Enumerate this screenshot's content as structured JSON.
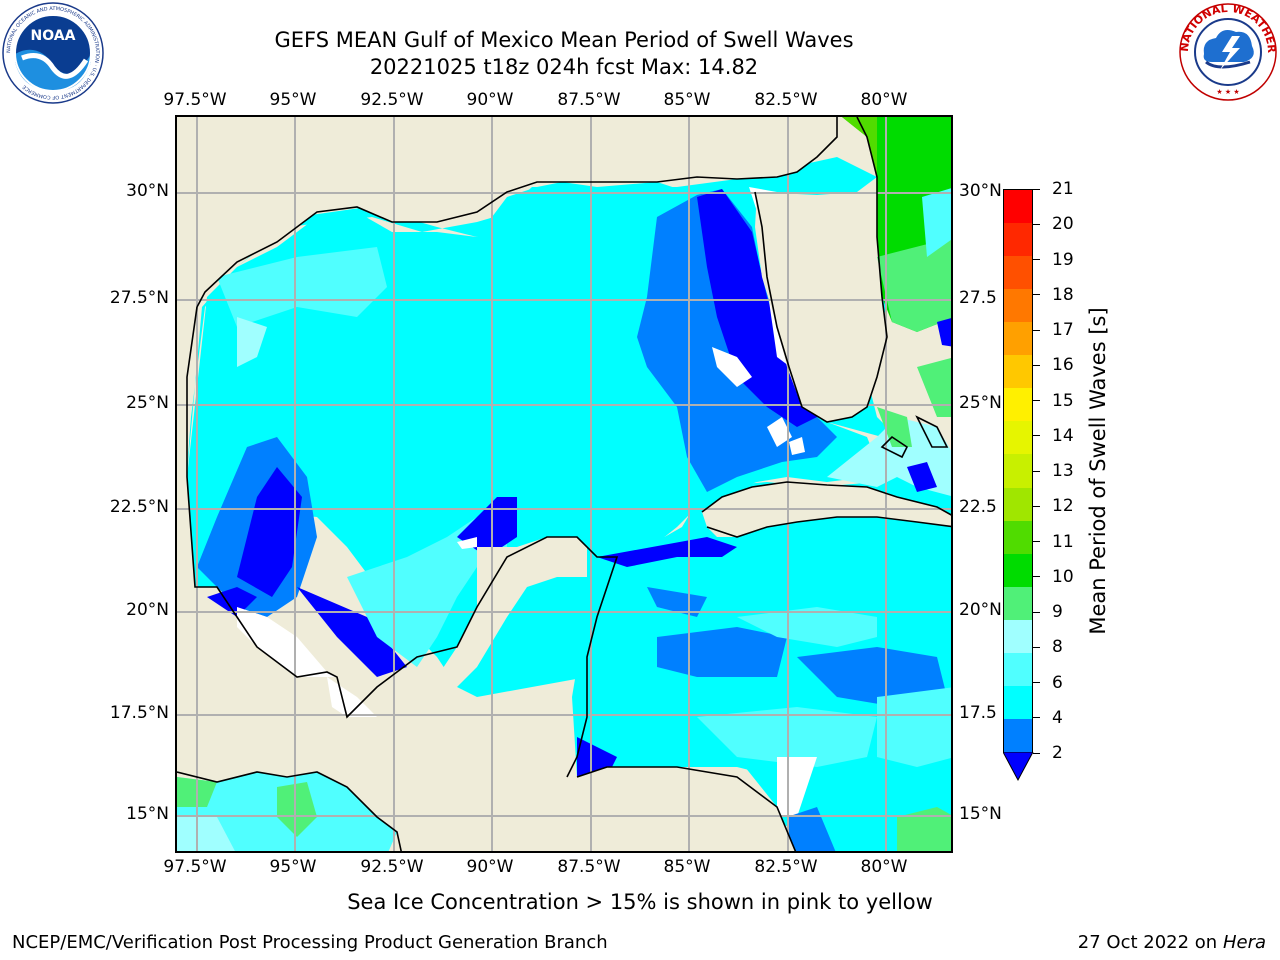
{
  "title": {
    "line1": "GEFS MEAN Gulf of Mexico Mean Period of Swell Waves",
    "line2": "20221025 t18z 024h fcst   Max: 14.82"
  },
  "logos": {
    "noaa": {
      "text": "NOAA",
      "ring_text": "NATIONAL OCEANIC AND ATMOSPHERIC ADMINISTRATION · U.S. DEPARTMENT OF COMMERCE"
    },
    "nws": {
      "ring_text": "NATIONAL WEATHER SERVICE"
    }
  },
  "map": {
    "lon_labels": [
      "97.5°W",
      "95°W",
      "92.5°W",
      "90°W",
      "87.5°W",
      "85°W",
      "82.5°W",
      "80°W"
    ],
    "lat_labels_left": [
      "30°N",
      "27.5°N",
      "25°N",
      "22.5°N",
      "20°N",
      "17.5°N",
      "15°N"
    ],
    "lat_labels_right": [
      "30°N",
      "27.5",
      "25°N",
      "22.5",
      "20°N",
      "17.5",
      "15°N"
    ],
    "land_color": "#efecd9",
    "grid_color": "#b0b0b0"
  },
  "colorbar": {
    "label": "Mean Period of Swell Waves [s]",
    "ticks": [
      "21",
      "20",
      "19",
      "18",
      "17",
      "16",
      "15",
      "14",
      "13",
      "12",
      "11",
      "10",
      "9",
      "8",
      "6",
      "4",
      "2"
    ],
    "levels_top_to_bottom": [
      "#ff0000",
      "#ff2800",
      "#ff5000",
      "#ff7800",
      "#ffa000",
      "#ffc800",
      "#fff000",
      "#e6f500",
      "#c8f000",
      "#a0e600",
      "#50dc00",
      "#00dc00",
      "#50f078",
      "#a0ffff",
      "#50ffff",
      "#00ffff",
      "#0080ff"
    ],
    "under_color": "#0000ff"
  },
  "legend_fields": {
    "colors": {
      "deep_blue": "#0000ff",
      "blue": "#0080ff",
      "cyan": "#00ffff",
      "light_cyan": "#50ffff",
      "pale_cyan": "#a0ffff",
      "pale_green": "#50f078",
      "green": "#00dc00"
    }
  },
  "note": "Sea Ice Concentration > 15% is shown in pink to yellow",
  "footer": {
    "left": "NCEP/EMC/Verification Post Processing Product Generation Branch",
    "right_date": "27 Oct 2022 on ",
    "right_host": "Hera"
  }
}
